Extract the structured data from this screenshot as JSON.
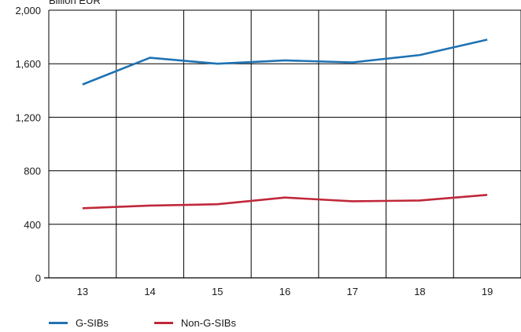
{
  "chart_data": {
    "type": "line",
    "ylabel": "Billion EUR",
    "categories": [
      "13",
      "14",
      "15",
      "16",
      "17",
      "18",
      "19"
    ],
    "ylim": [
      0,
      2000
    ],
    "yticks": [
      "0",
      "400",
      "800",
      "1,200",
      "1,600",
      "2,000"
    ],
    "grid": true,
    "legend_position": "bottom-left",
    "series": [
      {
        "name": "G-SIBs",
        "color": "#1f73b4",
        "values": [
          1445,
          1645,
          1600,
          1625,
          1610,
          1665,
          1780
        ]
      },
      {
        "name": "Non-G-SIBs",
        "color": "#c0283a",
        "values": [
          520,
          540,
          550,
          600,
          572,
          578,
          620
        ]
      }
    ]
  }
}
